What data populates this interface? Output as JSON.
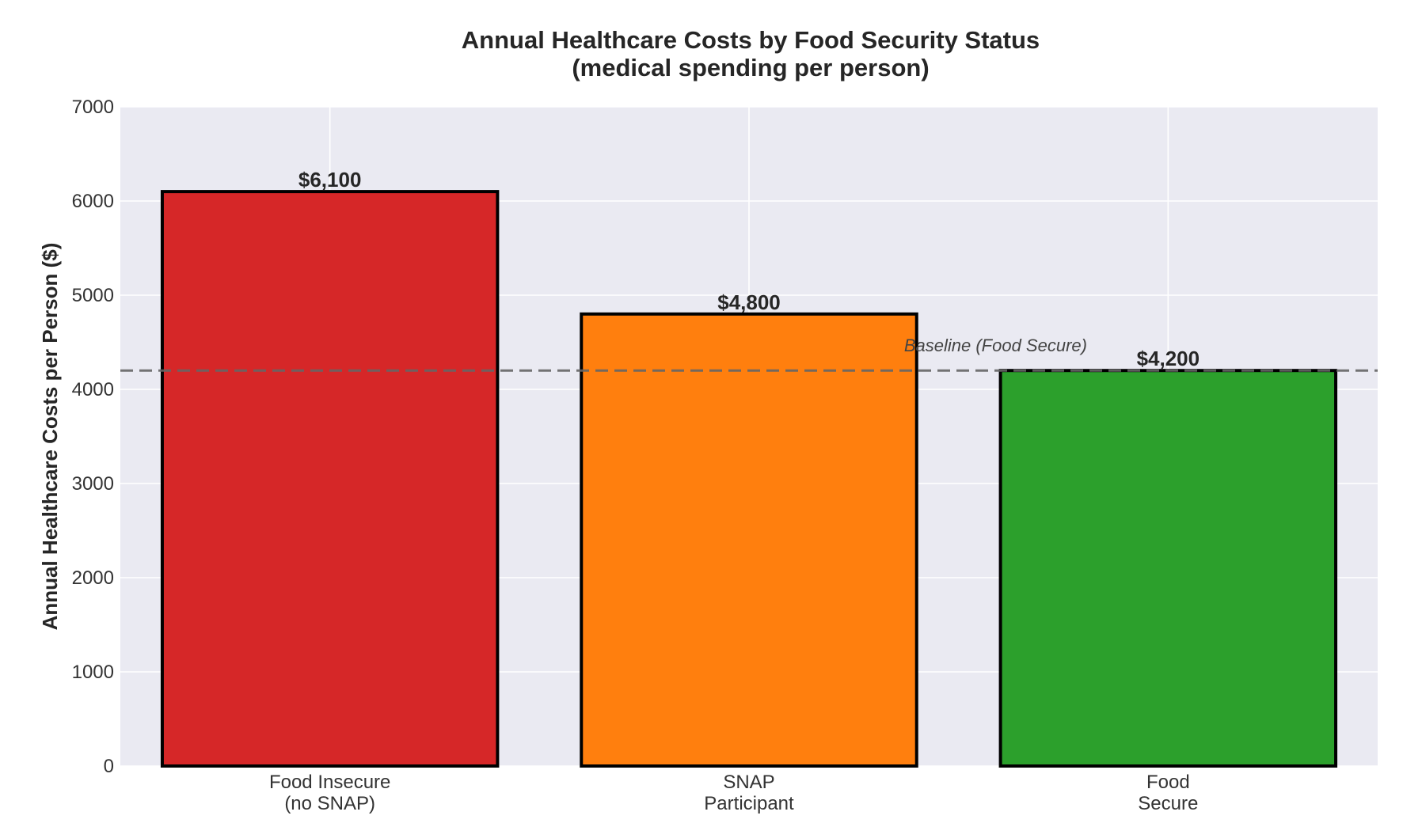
{
  "chart_data": {
    "type": "bar",
    "title_lines": [
      "Annual Healthcare Costs by Food Security Status",
      "(medical spending per person)"
    ],
    "xlabel": "",
    "ylabel": "Annual Healthcare Costs per Person ($)",
    "ylim": [
      0,
      7000
    ],
    "yticks": [
      0,
      1000,
      2000,
      3000,
      4000,
      5000,
      6000,
      7000
    ],
    "categories": [
      [
        "Food Insecure",
        "(no SNAP)"
      ],
      [
        "SNAP",
        "Participant"
      ],
      [
        "Food",
        "Secure"
      ]
    ],
    "values": [
      6100,
      4800,
      4200
    ],
    "value_labels": [
      "$6,100",
      "$4,800",
      "$4,200"
    ],
    "bar_colors": [
      "#d62728",
      "#ff7f0e",
      "#2ca02c"
    ],
    "bar_edge_color": "#000000",
    "grid": true,
    "background": "#eaeaf2",
    "reference_line": {
      "value": 4200,
      "label": "Baseline (Food Secure)",
      "color": "#666666",
      "style": "dashed"
    }
  }
}
